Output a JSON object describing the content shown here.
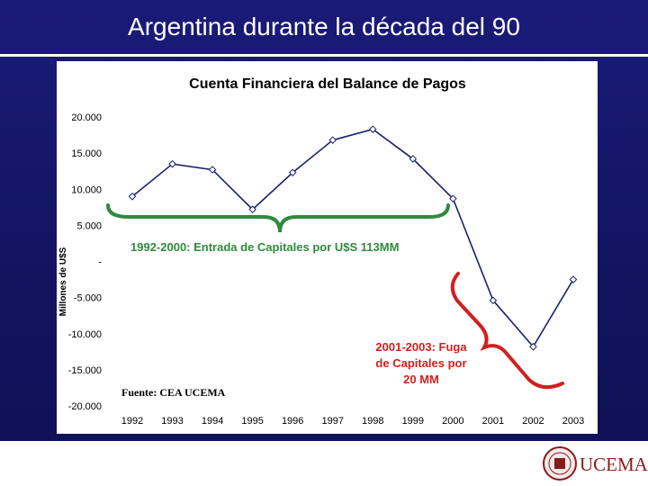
{
  "slide": {
    "title": "Argentina durante la década del 90"
  },
  "colors": {
    "background": "#14156a",
    "series": "#1a2070",
    "green_annotation": "#2e8b3e",
    "red_annotation": "#d0201f"
  },
  "chart_data": {
    "type": "line",
    "title": "Cuenta Financiera del Balance de Pagos",
    "ylabel": "Millones de U$S",
    "xlabel": "",
    "categories": [
      "1992",
      "1993",
      "1994",
      "1995",
      "1996",
      "1997",
      "1998",
      "1999",
      "2000",
      "2001",
      "2002",
      "2003"
    ],
    "series": [
      {
        "values": [
          9000,
          13500,
          12700,
          7200,
          12300,
          16800,
          18300,
          14200,
          8700,
          -5400,
          -11800,
          -2500
        ]
      }
    ],
    "ylim": [
      -20000,
      20000
    ],
    "yticks": [
      20000,
      15000,
      10000,
      5000,
      0,
      -5000,
      -10000,
      -15000,
      -20000
    ],
    "ytick_labels": [
      "20.000",
      "15.000",
      "10.000",
      "5.000",
      "-",
      "-5.000",
      "-10.000",
      "-15.000",
      "-20.000"
    ],
    "grid": false,
    "annotations": {
      "inflow": "1992-2000: Entrada de Capitales por U$S 113MM",
      "outflow_lines": [
        "2001-2003: Fuga",
        "de Capitales por",
        "20 MM"
      ],
      "source": "Fuente: CEA UCEMA"
    }
  },
  "footer": {
    "logo_text": "UCEMA"
  }
}
